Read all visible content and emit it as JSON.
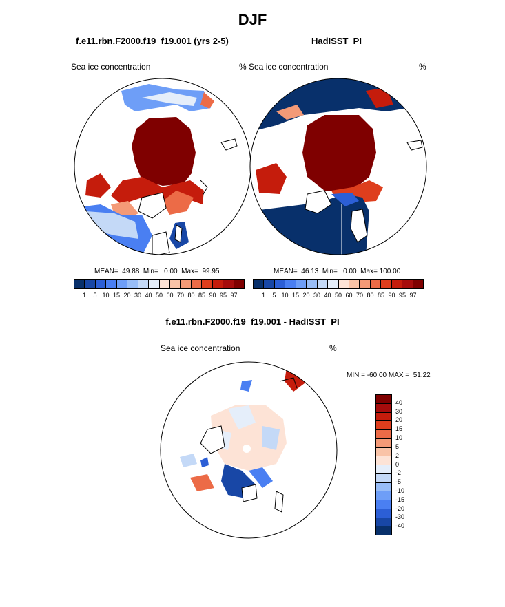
{
  "figure": {
    "season": "DJF",
    "panels": [
      {
        "title": "f.e11.rbn.F2000.f19_f19.001 (yrs 2-5)",
        "variable": "Sea ice concentration",
        "units": "",
        "stats": "MEAN=  49.88  Min=   0.00  Max=  99.95"
      },
      {
        "title": "HadISST_PI",
        "variable": "% Sea ice concentration",
        "units": "%",
        "stats": "MEAN=  46.13  Min=   0.00  Max= 100.00"
      }
    ],
    "diff": {
      "title": "f.e11.rbn.F2000.f19_f19.001 - HadISST_PI",
      "variable": "Sea ice concentration",
      "units": "%",
      "minmax": "MIN = -60.00 MAX =  51.22"
    }
  },
  "colorbar_top": {
    "labels": [
      "1",
      "5",
      "10",
      "15",
      "20",
      "30",
      "40",
      "50",
      "60",
      "70",
      "80",
      "85",
      "90",
      "95",
      "97"
    ],
    "colors": [
      "#08306b",
      "#1847a6",
      "#2c5fd6",
      "#4a7ff2",
      "#6e9ef7",
      "#98bdf7",
      "#c4d9f7",
      "#e5eefa",
      "#fde3d6",
      "#f9c3a7",
      "#f49a77",
      "#ec6b47",
      "#de3e1d",
      "#c51c0c",
      "#a60c0c",
      "#7f0000"
    ]
  },
  "colorbar_diff": {
    "labels": [
      "40",
      "30",
      "20",
      "15",
      "10",
      "5",
      "2",
      "0",
      "-2",
      "-5",
      "-10",
      "-15",
      "-20",
      "-30",
      "-40"
    ],
    "colors": [
      "#7f0000",
      "#a60c0c",
      "#c51c0c",
      "#de3e1d",
      "#ec6b47",
      "#f49a77",
      "#f9c3a7",
      "#fde3d6",
      "#e5eefa",
      "#c4d9f7",
      "#98bdf7",
      "#6e9ef7",
      "#4a7ff2",
      "#2c5fd6",
      "#1847a6",
      "#08306b"
    ]
  }
}
